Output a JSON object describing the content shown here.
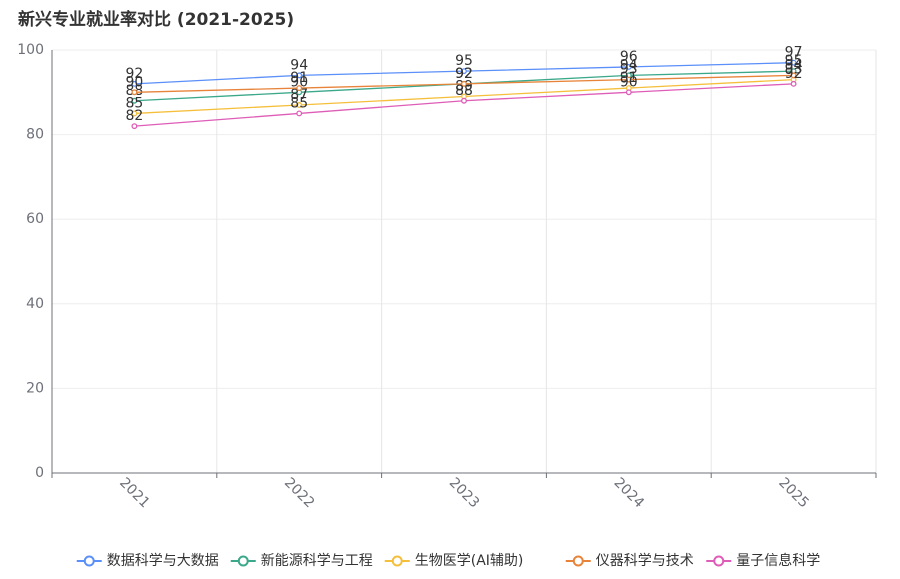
{
  "chart_data": {
    "type": "line",
    "title": "新兴专业就业率对比 (2021-2025)",
    "categories": [
      "2021",
      "2022",
      "2023",
      "2024",
      "2025"
    ],
    "series": [
      {
        "name": "数据科学与大数据",
        "color": "#5b8ff9",
        "values": [
          92,
          94,
          95,
          96,
          97
        ]
      },
      {
        "name": "新能源科学与工程",
        "color": "#3ba88a",
        "values": [
          88,
          90,
          92,
          94,
          95
        ]
      },
      {
        "name": "生物医学(AI辅助)",
        "color": "#f5bf3c",
        "values": [
          85,
          87,
          89,
          91,
          93
        ]
      },
      {
        "name": "仪器科学与技术",
        "color": "#e8843a",
        "values": [
          90,
          91,
          92,
          93,
          94
        ]
      },
      {
        "name": "量子信息科学",
        "color": "#de5db7",
        "values": [
          82,
          85,
          88,
          90,
          92
        ]
      }
    ],
    "ylim": [
      0,
      100
    ],
    "yticks": [
      0,
      20,
      40,
      60,
      80,
      100
    ],
    "grid": true,
    "legend": "bottom"
  }
}
